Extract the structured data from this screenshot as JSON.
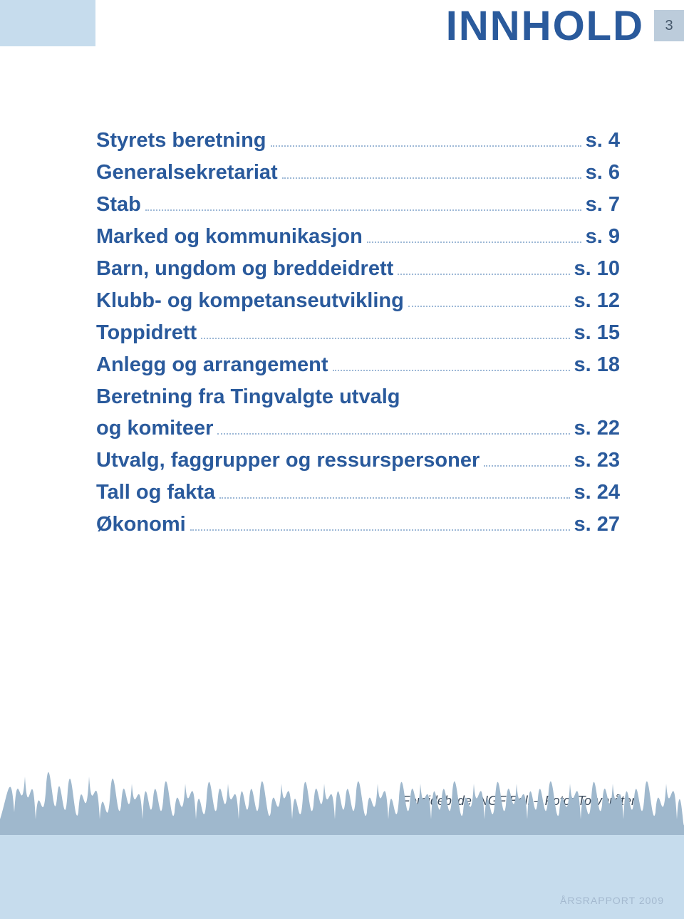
{
  "header": {
    "title": "INNHOLD",
    "page_number": "3",
    "title_color": "#2a5a9c",
    "band_color": "#c6dced",
    "pagebox_bg": "#bcccdb"
  },
  "toc": {
    "text_color": "#2a5a9c",
    "dot_color": "#9db8d6",
    "items": [
      {
        "label": "Styrets beretning",
        "page": "s. 4"
      },
      {
        "label": "Generalsekretariat",
        "page": "s. 6"
      },
      {
        "label": "Stab",
        "page": "s. 7"
      },
      {
        "label": "Marked og kommunikasjon",
        "page": "s. 9"
      },
      {
        "label": "Barn, ungdom og breddeidrett",
        "page": "s. 10"
      },
      {
        "label": "Klubb- og kompetanseutvikling",
        "page": "s. 12"
      },
      {
        "label": "Toppidrett",
        "page": "s. 15"
      },
      {
        "label": "Anlegg og arrangement",
        "page": "s. 18"
      },
      {
        "label": "Beretning fra Tingvalgte utvalg",
        "cont": "og komiteer",
        "page": "s. 22"
      },
      {
        "label": "Utvalg, faggrupper og ressurspersoner",
        "page": "s. 23"
      },
      {
        "label": "Tall og fakta",
        "page": "s. 24"
      },
      {
        "label": "Økonomi",
        "page": "s. 27"
      }
    ]
  },
  "credit": "Forsidebilde: NGF Ball – Foto: Torvbråten",
  "footer": {
    "text": "ÅRSRAPPORT 2009",
    "band_color": "#c6dced",
    "text_color": "#a4b9cf",
    "grass_fill": "#9fb8cd",
    "grass_fill_dark": "#7f9ab2"
  }
}
